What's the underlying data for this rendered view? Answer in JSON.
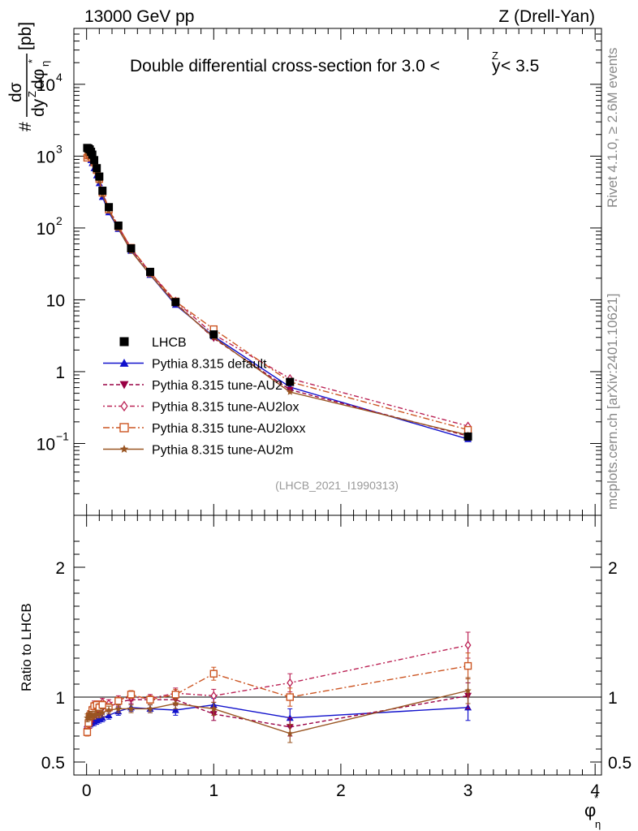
{
  "header": {
    "energy_label": "13000 GeV pp",
    "process_label": "Z (Drell-Yan)",
    "title_prefix": "Double differential cross-section for 3.0 < ",
    "title_var": "y",
    "title_var_sup": "Z",
    "title_suffix": " < 3.5"
  },
  "side": {
    "rivet": "Rivet 4.1.0, ≥ 2.6M events",
    "mcplots": "mcplots.cern.ch [arXiv:2401.10621]"
  },
  "watermark": "(LHCB_2021_I1990313)",
  "axes": {
    "y_main": {
      "hash": "#",
      "num": "dσ",
      "den_a": "dy",
      "den_sup": "Z",
      "den_b": "dφ",
      "den_sub": "η",
      "star": "*",
      "unit": "[pb]"
    },
    "y_ratio": "Ratio to LHCB",
    "x": {
      "main": "φ",
      "star": "*",
      "sub": "η"
    },
    "main_ticks": [
      {
        "v": 0.1,
        "base": "10",
        "exp": "−1"
      },
      {
        "v": 1,
        "base": "1",
        "exp": ""
      },
      {
        "v": 10,
        "base": "10",
        "exp": ""
      },
      {
        "v": 100,
        "base": "10",
        "exp": "2"
      },
      {
        "v": 1000,
        "base": "10",
        "exp": "3"
      },
      {
        "v": 10000,
        "base": "10",
        "exp": "4"
      }
    ],
    "ratio_ticks": [
      {
        "v": 0.5,
        "label": "0.5"
      },
      {
        "v": 1,
        "label": "1"
      },
      {
        "v": 2,
        "label": "2"
      }
    ],
    "x_ticks": [
      {
        "v": 0,
        "label": "0"
      },
      {
        "v": 1,
        "label": "1"
      },
      {
        "v": 2,
        "label": "2"
      },
      {
        "v": 3,
        "label": "3"
      },
      {
        "v": 4,
        "label": "4"
      }
    ]
  },
  "chart_data": {
    "type": "line",
    "title": "Double differential cross-section for 3.0 < y^Z < 3.5",
    "xlabel": "φ*_η",
    "ylabel": "dσ/dy^Z dφ*_η [pb]",
    "yscale": "log",
    "xlim": [
      -0.1,
      4.05
    ],
    "ylim": [
      0.01,
      60000
    ],
    "ratio_ylim": [
      0.4,
      2.4
    ],
    "x": [
      0.005,
      0.015,
      0.025,
      0.035,
      0.045,
      0.06,
      0.08,
      0.1,
      0.125,
      0.175,
      0.25,
      0.35,
      0.5,
      0.7,
      1.0,
      1.6,
      3.0
    ],
    "data": {
      "name": "LHCB",
      "color": "#000000",
      "marker": "square",
      "values": [
        1300,
        1280,
        1240,
        1150,
        1050,
        880,
        680,
        520,
        330,
        195,
        108,
        52,
        24.5,
        9.3,
        3.3,
        0.72,
        0.125
      ]
    },
    "series": [
      {
        "name": "Pythia 8.315 default",
        "color": "#1111cc",
        "marker": "triangle-up",
        "dash": "",
        "values": [
          1030,
          1000,
          960,
          880,
          800,
          680,
          540,
          420,
          270,
          165,
          97,
          48,
          22.2,
          8.5,
          3.1,
          0.61,
          0.115
        ],
        "ratio": [
          0.79,
          0.8,
          0.8,
          0.8,
          0.81,
          0.81,
          0.82,
          0.83,
          0.84,
          0.86,
          0.89,
          0.92,
          0.91,
          0.9,
          0.94,
          0.84,
          0.92
        ],
        "ratio_err": [
          0.03,
          0.03,
          0.03,
          0.03,
          0.03,
          0.03,
          0.03,
          0.03,
          0.03,
          0.03,
          0.03,
          0.03,
          0.03,
          0.04,
          0.05,
          0.07,
          0.1
        ]
      },
      {
        "name": "Pythia 8.315 tune-AU2",
        "color": "#990044",
        "marker": "triangle-down",
        "dash": "5,3",
        "values": [
          960,
          980,
          980,
          940,
          880,
          760,
          600,
          460,
          300,
          180,
          104,
          51,
          23.9,
          9.1,
          2.9,
          0.56,
          0.127
        ],
        "ratio": [
          0.74,
          0.77,
          0.79,
          0.82,
          0.84,
          0.86,
          0.88,
          0.89,
          0.91,
          0.92,
          0.96,
          0.98,
          0.98,
          0.98,
          0.87,
          0.77,
          1.01
        ],
        "ratio_err": [
          0.03,
          0.03,
          0.03,
          0.03,
          0.03,
          0.03,
          0.03,
          0.03,
          0.03,
          0.03,
          0.03,
          0.03,
          0.03,
          0.04,
          0.05,
          0.07,
          0.1
        ]
      },
      {
        "name": "Pythia 8.315 tune-AU2lox",
        "color": "#bb2255",
        "marker": "diamond-open",
        "dash": "2,3,6,3",
        "values": [
          1000,
          1010,
          1010,
          990,
          950,
          830,
          640,
          490,
          320,
          185,
          106,
          52,
          24.2,
          9.6,
          3.3,
          0.8,
          0.175
        ],
        "ratio": [
          0.77,
          0.79,
          0.81,
          0.86,
          0.9,
          0.94,
          0.94,
          0.94,
          0.96,
          0.95,
          0.98,
          1.0,
          0.99,
          1.03,
          1.01,
          1.11,
          1.4
        ],
        "ratio_err": [
          0.03,
          0.03,
          0.03,
          0.03,
          0.03,
          0.03,
          0.03,
          0.03,
          0.03,
          0.03,
          0.03,
          0.03,
          0.03,
          0.04,
          0.05,
          0.07,
          0.1
        ]
      },
      {
        "name": "Pythia 8.315 tune-AU2loxx",
        "color": "#cc5522",
        "marker": "square-open",
        "dash": "8,3,2,3",
        "values": [
          950,
          1020,
          1050,
          1000,
          950,
          820,
          640,
          480,
          310,
          180,
          105,
          53,
          24.0,
          9.5,
          3.9,
          0.72,
          0.155
        ],
        "ratio": [
          0.73,
          0.8,
          0.85,
          0.87,
          0.9,
          0.93,
          0.94,
          0.92,
          0.94,
          0.92,
          0.97,
          1.02,
          0.98,
          1.02,
          1.18,
          1.0,
          1.24
        ],
        "ratio_err": [
          0.03,
          0.03,
          0.03,
          0.03,
          0.03,
          0.03,
          0.03,
          0.03,
          0.03,
          0.03,
          0.03,
          0.03,
          0.03,
          0.04,
          0.05,
          0.07,
          0.1
        ]
      },
      {
        "name": "Pythia 8.315 tune-AU2m",
        "color": "#995522",
        "marker": "star",
        "dash": "",
        "values": [
          1090,
          1090,
          1070,
          990,
          900,
          760,
          590,
          450,
          290,
          175,
          98,
          47.5,
          22.3,
          8.8,
          3.0,
          0.52,
          0.131
        ],
        "ratio": [
          0.84,
          0.85,
          0.86,
          0.86,
          0.86,
          0.86,
          0.87,
          0.87,
          0.88,
          0.9,
          0.91,
          0.91,
          0.91,
          0.95,
          0.91,
          0.72,
          1.05
        ],
        "ratio_err": [
          0.03,
          0.03,
          0.03,
          0.03,
          0.03,
          0.03,
          0.03,
          0.03,
          0.03,
          0.03,
          0.03,
          0.03,
          0.03,
          0.04,
          0.05,
          0.07,
          0.1
        ]
      }
    ]
  }
}
